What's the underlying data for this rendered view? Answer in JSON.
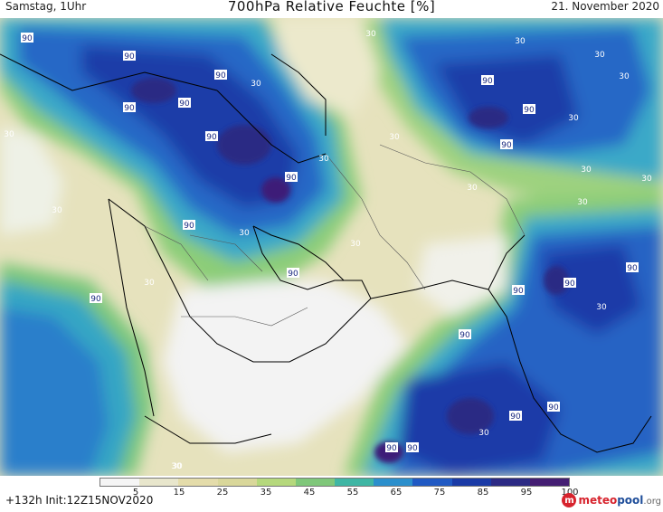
{
  "header": {
    "left": "Samstag, 1Uhr",
    "title": "700hPa Relative Feuchte [%]",
    "date": "21. November 2020"
  },
  "footer": {
    "run_info": "+132h  Init:12Z15NOV2020",
    "logo_main": "meteo",
    "logo_accent": "pool",
    "logo_suffix": ".org"
  },
  "legend": {
    "ticks": [
      "5",
      "15",
      "25",
      "35",
      "45",
      "55",
      "65",
      "75",
      "85",
      "95",
      "100"
    ],
    "colors": [
      "#f5f5f5",
      "#e8e6cc",
      "#e4dcaa",
      "#d9d79a",
      "#b5d87c",
      "#7fc77a",
      "#3fb6a4",
      "#2b8fcc",
      "#2059c3",
      "#1a3aa6",
      "#2c2a84",
      "#441e73"
    ]
  },
  "map": {
    "contour_labels": [
      {
        "text": "90"
      },
      {
        "text": "90"
      },
      {
        "text": "30"
      },
      {
        "text": "90"
      },
      {
        "text": "90"
      },
      {
        "text": "90"
      },
      {
        "text": "30"
      },
      {
        "text": "90"
      },
      {
        "text": "30"
      },
      {
        "text": "30"
      },
      {
        "text": "90"
      },
      {
        "text": "30"
      },
      {
        "text": "30"
      },
      {
        "text": "90"
      },
      {
        "text": "90"
      },
      {
        "text": "30"
      },
      {
        "text": "30"
      },
      {
        "text": "90"
      },
      {
        "text": "30"
      },
      {
        "text": "30"
      },
      {
        "text": "90"
      },
      {
        "text": "30"
      },
      {
        "text": "30"
      },
      {
        "text": "30"
      },
      {
        "text": "90"
      },
      {
        "text": "90"
      },
      {
        "text": "30"
      },
      {
        "text": "90"
      },
      {
        "text": "90"
      },
      {
        "text": "30"
      },
      {
        "text": "90"
      },
      {
        "text": "90"
      },
      {
        "text": "90"
      },
      {
        "text": "30"
      },
      {
        "text": "90"
      },
      {
        "text": "90"
      },
      {
        "text": "90"
      },
      {
        "text": "30"
      },
      {
        "text": "30"
      },
      {
        "text": "30"
      },
      {
        "text": "30"
      },
      {
        "text": "30"
      },
      {
        "text": "30"
      }
    ]
  }
}
